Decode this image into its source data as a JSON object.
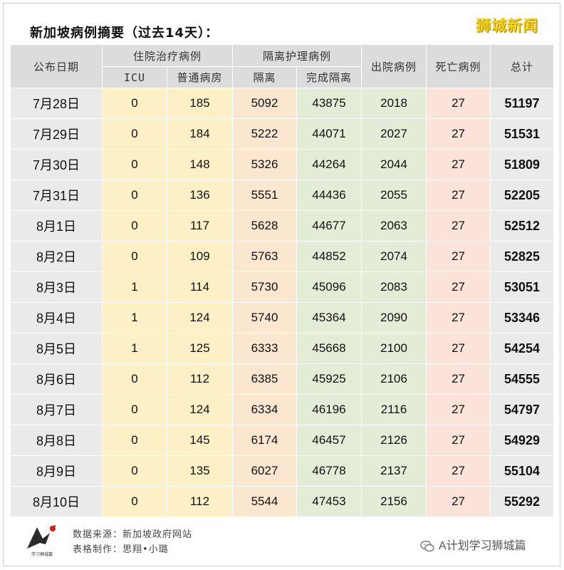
{
  "title": "新加坡病例摘要（过去14天）：",
  "brand": "狮城新闻",
  "headers": {
    "date": "公布日期",
    "hospital_group": "住院治疗病例",
    "icu": "ICU",
    "ward": "普通病房",
    "isolation_group": "隔离护理病例",
    "isolation": "隔离",
    "completed": "完成隔离",
    "discharged": "出院病例",
    "deaths": "死亡病例",
    "total": "总计"
  },
  "rows": [
    {
      "date": "7月28日",
      "icu": "0",
      "ward": "185",
      "isolation": "5092",
      "completed": "43875",
      "discharged": "2018",
      "deaths": "27",
      "total": "51197"
    },
    {
      "date": "7月29日",
      "icu": "0",
      "ward": "184",
      "isolation": "5222",
      "completed": "44071",
      "discharged": "2027",
      "deaths": "27",
      "total": "51531"
    },
    {
      "date": "7月30日",
      "icu": "0",
      "ward": "148",
      "isolation": "5326",
      "completed": "44264",
      "discharged": "2044",
      "deaths": "27",
      "total": "51809"
    },
    {
      "date": "7月31日",
      "icu": "0",
      "ward": "136",
      "isolation": "5551",
      "completed": "44436",
      "discharged": "2055",
      "deaths": "27",
      "total": "52205"
    },
    {
      "date": "8月1日",
      "icu": "0",
      "ward": "117",
      "isolation": "5628",
      "completed": "44677",
      "discharged": "2063",
      "deaths": "27",
      "total": "52512"
    },
    {
      "date": "8月2日",
      "icu": "0",
      "ward": "109",
      "isolation": "5763",
      "completed": "44852",
      "discharged": "2074",
      "deaths": "27",
      "total": "52825"
    },
    {
      "date": "8月3日",
      "icu": "1",
      "ward": "114",
      "isolation": "5730",
      "completed": "45096",
      "discharged": "2083",
      "deaths": "27",
      "total": "53051"
    },
    {
      "date": "8月4日",
      "icu": "1",
      "ward": "124",
      "isolation": "5740",
      "completed": "45364",
      "discharged": "2090",
      "deaths": "27",
      "total": "53346"
    },
    {
      "date": "8月5日",
      "icu": "1",
      "ward": "125",
      "isolation": "6333",
      "completed": "45668",
      "discharged": "2100",
      "deaths": "27",
      "total": "54254"
    },
    {
      "date": "8月6日",
      "icu": "0",
      "ward": "112",
      "isolation": "6385",
      "completed": "45925",
      "discharged": "2106",
      "deaths": "27",
      "total": "54555"
    },
    {
      "date": "8月7日",
      "icu": "0",
      "ward": "124",
      "isolation": "6334",
      "completed": "46196",
      "discharged": "2116",
      "deaths": "27",
      "total": "54797"
    },
    {
      "date": "8月8日",
      "icu": "0",
      "ward": "145",
      "isolation": "6174",
      "completed": "46457",
      "discharged": "2126",
      "deaths": "27",
      "total": "54929"
    },
    {
      "date": "8月9日",
      "icu": "0",
      "ward": "135",
      "isolation": "6027",
      "completed": "46778",
      "discharged": "2137",
      "deaths": "27",
      "total": "55104"
    },
    {
      "date": "8月10日",
      "icu": "0",
      "ward": "112",
      "isolation": "5544",
      "completed": "47453",
      "discharged": "2156",
      "deaths": "27",
      "total": "55292"
    }
  ],
  "footer": {
    "source": "数据来源：新加坡政府网站",
    "made_by": "表格制作：思翔•小璐",
    "logo_text": "学习狮城篇",
    "wechat": "A计划学习狮城篇"
  },
  "colors": {
    "hospital_bg": "#fdf0c6",
    "isolation_bg": "#fbe6d0",
    "completed_bg": "#e2ecd6",
    "deaths_bg": "#fbe3da",
    "header_bg": "#dcdcdc",
    "brand": "#f4d21a"
  }
}
